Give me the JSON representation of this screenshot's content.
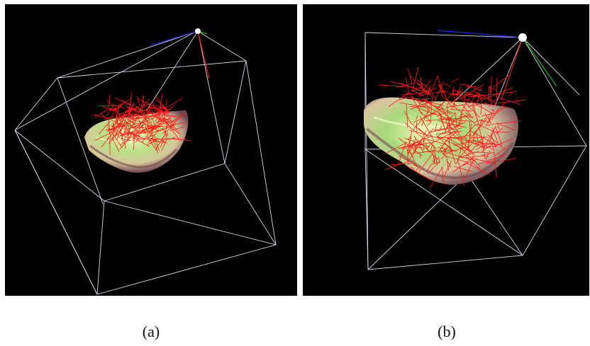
{
  "figure": {
    "panels": [
      {
        "caption": "(a)"
      },
      {
        "caption": "(b)"
      }
    ]
  },
  "colors": {
    "background": "#000000",
    "wireframe": "#d8d8e8",
    "rays": "#ff1a1a",
    "surface_light": "#e9f7a8",
    "surface_mid": "#9ad06e",
    "surface_dark": "#7a4a54",
    "axis_x": "#1e2bd8",
    "axis_y": "#1ea81e",
    "axis_z": "#d01818",
    "viewpoint": "#ffffff"
  }
}
